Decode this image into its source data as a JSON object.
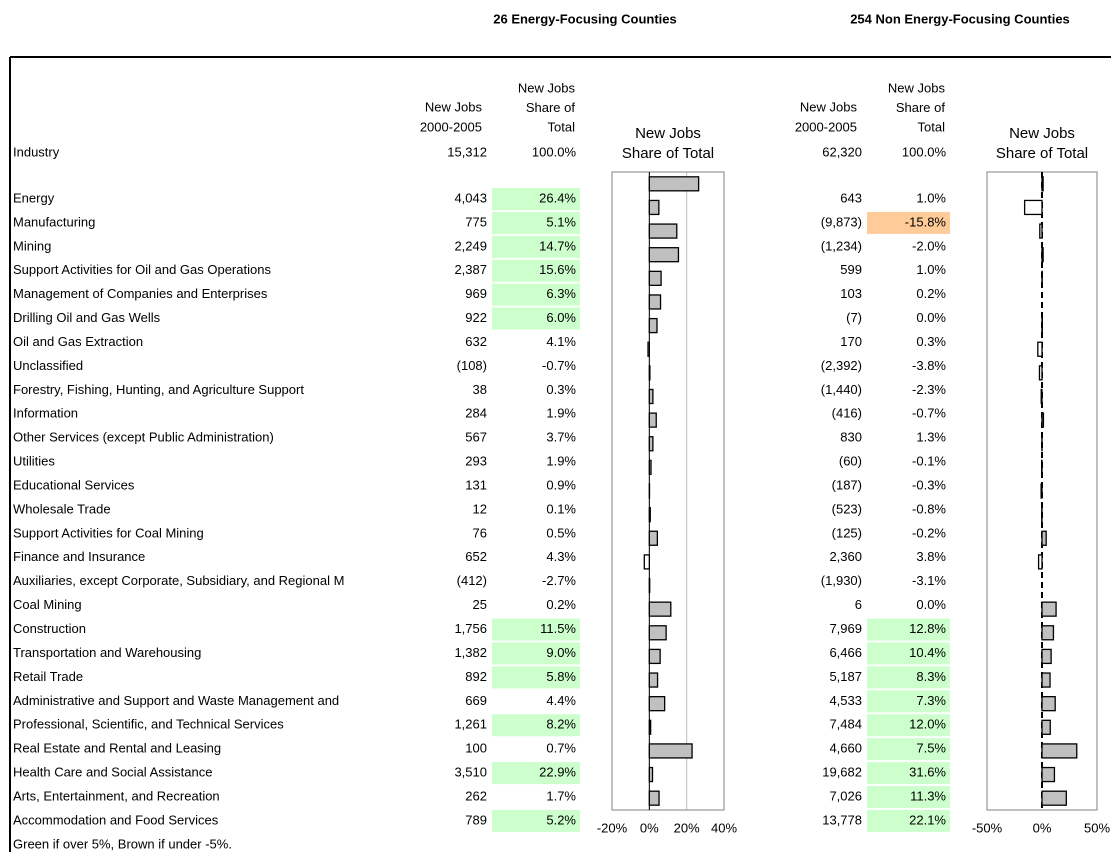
{
  "groups": [
    "26 Energy-Focusing Counties",
    "254 Non Energy-Focusing Counties"
  ],
  "industry_header": "Industry",
  "industries": [
    "Energy",
    "Manufacturing",
    "Mining",
    "Support Activities for Oil and Gas Operations",
    "Management of Companies and Enterprises",
    "Drilling Oil and Gas Wells",
    "Oil and Gas Extraction",
    "Unclassified",
    "Forestry, Fishing, Hunting, and Agriculture Support",
    "Information",
    "Other Services (except Public Administration)",
    "Utilities",
    "Educational Services",
    "Wholesale Trade",
    "Support Activities for Coal Mining",
    "Finance and Insurance",
    "Auxiliaries, except Corporate, Subsidiary, and Regional M",
    "Coal Mining",
    "Construction",
    "Transportation and Warehousing",
    "Retail Trade",
    "Administrative and Support and Waste Management and",
    "Professional, Scientific, and Technical Services",
    "Real Estate and Rental and Leasing",
    "Health Care and Social Assistance",
    "Arts, Entertainment, and Recreation",
    "Accommodation and Food Services"
  ],
  "note": "Green if over 5%, Brown if under -5%.",
  "highlight": {
    "above": 5,
    "above_color": "#ccffcc",
    "below": -5,
    "below_color": "#ffcc99"
  },
  "chart_data": [
    {
      "type": "bar",
      "orientation": "horizontal",
      "title": [
        "New Jobs",
        "Share of Total"
      ],
      "jobs_header": [
        "New Jobs",
        "2000-2005"
      ],
      "share_header": [
        "New Jobs",
        "Share of",
        "Total"
      ],
      "total_jobs": "15,312",
      "total_share": "100.0%",
      "jobs": [
        "4,043",
        "775",
        "2,249",
        "2,387",
        "969",
        "922",
        "632",
        "(108)",
        "38",
        "284",
        "567",
        "293",
        "131",
        "12",
        "76",
        "652",
        "(412)",
        "25",
        "1,756",
        "1,382",
        "892",
        "669",
        "1,261",
        "100",
        "3,510",
        "262",
        "789"
      ],
      "values": [
        26.4,
        5.1,
        14.7,
        15.6,
        6.3,
        6.0,
        4.1,
        -0.7,
        0.3,
        1.9,
        3.7,
        1.9,
        0.9,
        0.1,
        0.5,
        4.3,
        -2.7,
        0.2,
        11.5,
        9.0,
        5.8,
        4.4,
        8.2,
        0.7,
        22.9,
        1.7,
        5.2
      ],
      "value_labels": [
        "26.4%",
        "5.1%",
        "14.7%",
        "15.6%",
        "6.3%",
        "6.0%",
        "4.1%",
        "-0.7%",
        "0.3%",
        "1.9%",
        "3.7%",
        "1.9%",
        "0.9%",
        "0.1%",
        "0.5%",
        "4.3%",
        "-2.7%",
        "0.2%",
        "11.5%",
        "9.0%",
        "5.8%",
        "4.4%",
        "8.2%",
        "0.7%",
        "22.9%",
        "1.7%",
        "5.2%"
      ],
      "color": "#c0c0c0",
      "negative_color": "#ffffff",
      "xlim": [
        -20,
        40
      ],
      "xticks": [
        {
          "value": -20,
          "label": "-20%"
        },
        {
          "value": 0,
          "label": "0%"
        },
        {
          "value": 20,
          "label": "20%"
        },
        {
          "value": 40,
          "label": "40%"
        }
      ],
      "grid": true,
      "zero_line": "solid"
    },
    {
      "type": "bar",
      "orientation": "horizontal",
      "title": [
        "New Jobs",
        "Share of Total"
      ],
      "jobs_header": [
        "New Jobs",
        "2000-2005"
      ],
      "share_header": [
        "New Jobs",
        "Share of",
        "Total"
      ],
      "total_jobs": "62,320",
      "total_share": "100.0%",
      "jobs": [
        "643",
        "(9,873)",
        "(1,234)",
        "599",
        "103",
        "(7)",
        "170",
        "(2,392)",
        "(1,440)",
        "(416)",
        "830",
        "(60)",
        "(187)",
        "(523)",
        "(125)",
        "2,360",
        "(1,930)",
        "6",
        "7,969",
        "6,466",
        "5,187",
        "4,533",
        "7,484",
        "4,660",
        "19,682",
        "7,026",
        "13,778"
      ],
      "values": [
        1.0,
        -15.8,
        -2.0,
        1.0,
        0.2,
        0.0,
        0.3,
        -3.8,
        -2.3,
        -0.7,
        1.3,
        -0.1,
        -0.3,
        -0.8,
        -0.2,
        3.8,
        -3.1,
        0.0,
        12.8,
        10.4,
        8.3,
        7.3,
        12.0,
        7.5,
        31.6,
        11.3,
        22.1
      ],
      "value_labels": [
        "1.0%",
        "-15.8%",
        "-2.0%",
        "1.0%",
        "0.2%",
        "0.0%",
        "0.3%",
        "-3.8%",
        "-2.3%",
        "-0.7%",
        "1.3%",
        "-0.1%",
        "-0.3%",
        "-0.8%",
        "-0.2%",
        "3.8%",
        "-3.1%",
        "0.0%",
        "12.8%",
        "10.4%",
        "8.3%",
        "7.3%",
        "12.0%",
        "7.5%",
        "31.6%",
        "11.3%",
        "22.1%"
      ],
      "color": "#c0c0c0",
      "negative_color": "#ffffff",
      "xlim": [
        -50,
        50
      ],
      "xticks": [
        {
          "value": -50,
          "label": "-50%"
        },
        {
          "value": 0,
          "label": "0%"
        },
        {
          "value": 50,
          "label": "50%"
        }
      ],
      "grid": false,
      "zero_line": "dashed"
    }
  ]
}
